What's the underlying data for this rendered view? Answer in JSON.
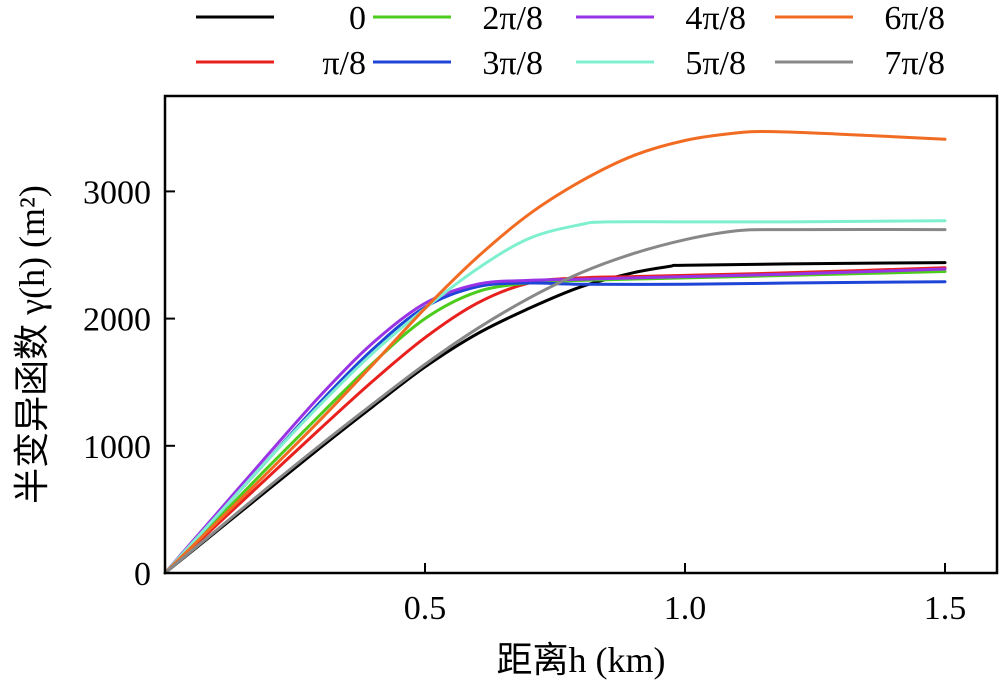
{
  "chart_data": {
    "type": "line",
    "xlabel": "距离h (km)",
    "ylabel": "半变异函数 γ(h) (m²)",
    "xlim": [
      0,
      1.6
    ],
    "ylim": [
      0,
      3750
    ],
    "xticks": [
      0.5,
      1.0,
      1.5
    ],
    "xtick_labels": [
      "0.5",
      "1.0",
      "1.5"
    ],
    "yticks": [
      0,
      1000,
      2000,
      3000
    ],
    "ytick_labels": [
      "0",
      "1000",
      "2000",
      "3000"
    ],
    "grid": false,
    "legend_position": "top",
    "series": [
      {
        "name": "0",
        "color": "#000000",
        "x": [
          0,
          0.1,
          0.2,
          0.3,
          0.4,
          0.5,
          0.6,
          0.7,
          0.8,
          0.9,
          0.97,
          1.0,
          1.2,
          1.5
        ],
        "y": [
          0,
          330,
          660,
          990,
          1310,
          1620,
          1880,
          2080,
          2250,
          2360,
          2410,
          2420,
          2430,
          2440
        ]
      },
      {
        "name": "π/8",
        "color": "#e8201e",
        "x": [
          0,
          0.1,
          0.2,
          0.3,
          0.4,
          0.5,
          0.6,
          0.7,
          0.8,
          0.9,
          1.0,
          1.2,
          1.5
        ],
        "y": [
          0,
          380,
          760,
          1140,
          1510,
          1850,
          2120,
          2280,
          2320,
          2330,
          2340,
          2360,
          2400
        ]
      },
      {
        "name": "2π/8",
        "color": "#4ccc1c",
        "x": [
          0,
          0.1,
          0.2,
          0.3,
          0.4,
          0.5,
          0.6,
          0.7,
          0.8,
          1.0,
          1.2,
          1.5
        ],
        "y": [
          0,
          420,
          840,
          1250,
          1650,
          2000,
          2210,
          2280,
          2300,
          2320,
          2340,
          2370
        ]
      },
      {
        "name": "3π/8",
        "color": "#1f45d8",
        "x": [
          0,
          0.1,
          0.2,
          0.3,
          0.4,
          0.5,
          0.6,
          0.7,
          0.8,
          1.0,
          1.2,
          1.5
        ],
        "y": [
          0,
          450,
          900,
          1350,
          1760,
          2090,
          2250,
          2280,
          2270,
          2270,
          2280,
          2290
        ]
      },
      {
        "name": "4π/8",
        "color": "#9933e6",
        "x": [
          0,
          0.1,
          0.2,
          0.3,
          0.4,
          0.5,
          0.6,
          0.7,
          0.8,
          1.0,
          1.2,
          1.5
        ],
        "y": [
          0,
          470,
          940,
          1400,
          1810,
          2120,
          2270,
          2300,
          2310,
          2330,
          2350,
          2390
        ]
      },
      {
        "name": "5π/8",
        "color": "#7ff0cf",
        "x": [
          0,
          0.1,
          0.2,
          0.3,
          0.4,
          0.5,
          0.6,
          0.7,
          0.8,
          0.85,
          1.0,
          1.2,
          1.5
        ],
        "y": [
          0,
          450,
          900,
          1330,
          1730,
          2080,
          2390,
          2630,
          2740,
          2760,
          2760,
          2760,
          2770
        ]
      },
      {
        "name": "6π/8",
        "color": "#f26b22",
        "x": [
          0,
          0.1,
          0.2,
          0.3,
          0.4,
          0.5,
          0.6,
          0.7,
          0.8,
          0.9,
          1.0,
          1.1,
          1.17,
          1.3,
          1.5
        ],
        "y": [
          0,
          400,
          800,
          1210,
          1640,
          2080,
          2480,
          2820,
          3080,
          3280,
          3400,
          3460,
          3470,
          3450,
          3410
        ]
      },
      {
        "name": "7π/8",
        "color": "#888888",
        "x": [
          0,
          0.1,
          0.2,
          0.3,
          0.4,
          0.5,
          0.6,
          0.7,
          0.8,
          0.9,
          1.0,
          1.1,
          1.2,
          1.5
        ],
        "y": [
          0,
          340,
          680,
          1010,
          1330,
          1640,
          1920,
          2160,
          2360,
          2510,
          2620,
          2690,
          2700,
          2700
        ]
      }
    ]
  }
}
